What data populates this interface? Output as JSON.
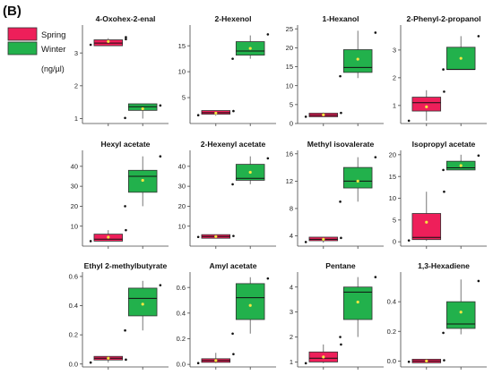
{
  "panel_label": "(B)",
  "unit_label": "(ng/µl)",
  "colors": {
    "spring": "#ee1f5a",
    "winter": "#22b14c",
    "mean": "#f5e642",
    "point": "#111111"
  },
  "legend": [
    {
      "name": "Spring",
      "color": "#ee1f5a"
    },
    {
      "name": "Winter",
      "color": "#22b14c"
    }
  ],
  "chart_data": [
    {
      "type": "box",
      "title": "4-Oxohex-2-enal",
      "ylim": [
        0.85,
        3.85
      ],
      "ticks": [
        1,
        2,
        3
      ],
      "series": [
        {
          "name": "Spring",
          "q1": 3.22,
          "median": 3.3,
          "q3": 3.4,
          "low": 3.22,
          "high": 3.45,
          "mean": 3.35,
          "points": [
            3.25,
            3.42,
            3.48
          ]
        },
        {
          "name": "Winter",
          "q1": 1.25,
          "median": 1.36,
          "q3": 1.45,
          "low": 1.0,
          "high": 1.45,
          "mean": 1.3,
          "points": [
            1.02,
            1.4
          ]
        }
      ]
    },
    {
      "type": "box",
      "title": "2-Hexenol",
      "ylim": [
        0,
        19
      ],
      "ticks": [
        5,
        10,
        15
      ],
      "series": [
        {
          "name": "Spring",
          "q1": 1.8,
          "median": 2.1,
          "q3": 2.5,
          "low": 1.5,
          "high": 2.5,
          "mean": 2.0,
          "points": [
            1.6,
            2.4
          ]
        },
        {
          "name": "Winter",
          "q1": 13.2,
          "median": 14.0,
          "q3": 15.8,
          "low": 12.5,
          "high": 17.0,
          "mean": 14.5,
          "points": [
            12.5,
            17.2
          ]
        }
      ]
    },
    {
      "type": "box",
      "title": "1-Hexanol",
      "ylim": [
        0,
        26
      ],
      "ticks": [
        0,
        5,
        10,
        15,
        20,
        25
      ],
      "series": [
        {
          "name": "Spring",
          "q1": 1.8,
          "median": 2.2,
          "q3": 2.7,
          "low": 1.8,
          "high": 2.9,
          "mean": 2.3,
          "points": [
            1.8,
            2.8
          ]
        },
        {
          "name": "Winter",
          "q1": 13.5,
          "median": 14.8,
          "q3": 19.5,
          "low": 12.0,
          "high": 24.5,
          "mean": 17.0,
          "points": [
            12.5,
            24.0
          ]
        }
      ]
    },
    {
      "type": "box",
      "title": "2-Phenyl-2-propanol",
      "ylim": [
        0.35,
        3.9
      ],
      "ticks": [
        1,
        2,
        3
      ],
      "series": [
        {
          "name": "Spring",
          "q1": 0.8,
          "median": 1.1,
          "q3": 1.3,
          "low": 0.45,
          "high": 1.55,
          "mean": 0.95,
          "points": [
            0.45,
            1.5
          ]
        },
        {
          "name": "Winter",
          "q1": 2.3,
          "median": 2.3,
          "q3": 3.1,
          "low": 2.3,
          "high": 3.5,
          "mean": 2.7,
          "points": [
            2.3,
            3.5
          ]
        }
      ]
    },
    {
      "type": "box",
      "title": "Hexyl acetate",
      "ylim": [
        0,
        48
      ],
      "ticks": [
        10,
        20,
        30,
        40
      ],
      "series": [
        {
          "name": "Spring",
          "q1": 2.5,
          "median": 3.5,
          "q3": 6.0,
          "low": 2.5,
          "high": 8.0,
          "mean": 4.5,
          "points": [
            2.5,
            8.0
          ]
        },
        {
          "name": "Winter",
          "q1": 27.0,
          "median": 35.0,
          "q3": 38.0,
          "low": 20.0,
          "high": 45.0,
          "mean": 33.0,
          "points": [
            20.0,
            45.0
          ]
        }
      ]
    },
    {
      "type": "box",
      "title": "2-Hexenyl acetate",
      "ylim": [
        0,
        48
      ],
      "ticks": [
        10,
        20,
        30,
        40
      ],
      "series": [
        {
          "name": "Spring",
          "q1": 4.5,
          "median": 4.8,
          "q3": 5.2,
          "low": 4.5,
          "high": 5.2,
          "mean": 4.8,
          "points": [
            4.6,
            5.1
          ]
        },
        {
          "name": "Winter",
          "q1": 33.0,
          "median": 34.0,
          "q3": 41.0,
          "low": 31.0,
          "high": 45.0,
          "mean": 37.0,
          "points": [
            31.0,
            44.0
          ]
        }
      ]
    },
    {
      "type": "box",
      "title": "Methyl isovalerate",
      "ylim": [
        2.5,
        16.5
      ],
      "ticks": [
        4,
        8,
        12,
        16
      ],
      "series": [
        {
          "name": "Spring",
          "q1": 3.3,
          "median": 3.5,
          "q3": 3.8,
          "low": 3.0,
          "high": 3.8,
          "mean": 3.5,
          "points": [
            3.1,
            3.7
          ]
        },
        {
          "name": "Winter",
          "q1": 11.0,
          "median": 12.0,
          "q3": 14.0,
          "low": 9.0,
          "high": 15.5,
          "mean": 12.0,
          "points": [
            9.0,
            15.5
          ]
        }
      ]
    },
    {
      "type": "box",
      "title": "Isopropyl acetate",
      "ylim": [
        -1,
        21
      ],
      "ticks": [
        0,
        5,
        10,
        15,
        20
      ],
      "series": [
        {
          "name": "Spring",
          "q1": 0.5,
          "median": 1.0,
          "q3": 6.5,
          "low": 0.2,
          "high": 11.5,
          "mean": 4.5,
          "points": [
            0.3,
            11.5
          ]
        },
        {
          "name": "Winter",
          "q1": 16.5,
          "median": 17.0,
          "q3": 18.5,
          "low": 16.5,
          "high": 20.0,
          "mean": 17.5,
          "points": [
            16.5,
            19.8
          ]
        }
      ]
    },
    {
      "type": "box",
      "title": "Ethyl 2-methylbutyrate",
      "ylim": [
        -0.02,
        0.63
      ],
      "ticks": [
        0.0,
        0.2,
        0.4,
        0.6
      ],
      "series": [
        {
          "name": "Spring",
          "q1": 0.04,
          "median": 0.04,
          "q3": 0.04,
          "low": 0.01,
          "high": 0.05,
          "mean": 0.04,
          "points": [
            0.01,
            0.03
          ]
        },
        {
          "name": "Winter",
          "q1": 0.33,
          "median": 0.45,
          "q3": 0.52,
          "low": 0.23,
          "high": 0.57,
          "mean": 0.41,
          "points": [
            0.23,
            0.54
          ]
        }
      ]
    },
    {
      "type": "box",
      "title": "Amyl acetate",
      "ylim": [
        -0.02,
        0.72
      ],
      "ticks": [
        0.0,
        0.2,
        0.4,
        0.6
      ],
      "series": [
        {
          "name": "Spring",
          "q1": 0.03,
          "median": 0.03,
          "q3": 0.03,
          "low": 0.01,
          "high": 0.09,
          "mean": 0.03,
          "points": [
            0.01,
            0.08
          ]
        },
        {
          "name": "Winter",
          "q1": 0.35,
          "median": 0.52,
          "q3": 0.63,
          "low": 0.24,
          "high": 0.68,
          "mean": 0.46,
          "points": [
            0.24,
            0.67
          ]
        }
      ]
    },
    {
      "type": "box",
      "title": "Pentane",
      "ylim": [
        0.8,
        4.6
      ],
      "ticks": [
        1,
        2,
        3,
        4
      ],
      "series": [
        {
          "name": "Spring",
          "q1": 1.0,
          "median": 1.15,
          "q3": 1.4,
          "low": 0.95,
          "high": 1.7,
          "mean": 1.2,
          "points": [
            0.95,
            1.7
          ]
        },
        {
          "name": "Winter",
          "q1": 2.7,
          "median": 3.8,
          "q3": 4.0,
          "low": 2.0,
          "high": 4.4,
          "mean": 3.4,
          "points": [
            2.0,
            4.4
          ]
        }
      ]
    },
    {
      "type": "box",
      "title": "1,3-Hexadiene",
      "ylim": [
        -0.04,
        0.6
      ],
      "ticks": [
        0.0,
        0.2,
        0.4
      ],
      "series": [
        {
          "name": "Spring",
          "q1": -0.01,
          "median": 0.0,
          "q3": 0.01,
          "low": -0.01,
          "high": 0.01,
          "mean": 0.0,
          "points": [
            -0.005,
            0.005
          ]
        },
        {
          "name": "Winter",
          "q1": 0.22,
          "median": 0.25,
          "q3": 0.4,
          "low": 0.18,
          "high": 0.55,
          "mean": 0.33,
          "points": [
            0.19,
            0.54
          ]
        }
      ]
    }
  ]
}
